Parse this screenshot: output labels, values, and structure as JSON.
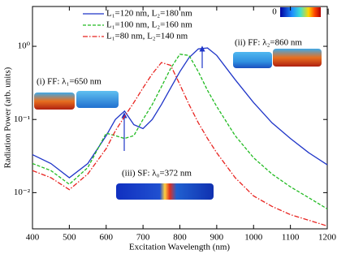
{
  "chart_data": {
    "type": "line",
    "xlabel": "Excitation Wavelength (nm)",
    "ylabel": "Radiation Power (arb. units)",
    "x": [
      400,
      450,
      500,
      550,
      600,
      625,
      650,
      675,
      700,
      725,
      750,
      775,
      800,
      825,
      850,
      875,
      900,
      950,
      1000,
      1050,
      1100,
      1150,
      1200
    ],
    "series": [
      {
        "name": "L₁=120 nm, L₂=180 nm",
        "color": "#1f35c8",
        "dash": "solid",
        "values": [
          0.033,
          0.025,
          0.016,
          0.025,
          0.06,
          0.1,
          0.13,
          0.085,
          0.075,
          0.1,
          0.16,
          0.27,
          0.45,
          0.7,
          0.92,
          0.95,
          0.75,
          0.35,
          0.17,
          0.09,
          0.055,
          0.035,
          0.024
        ]
      },
      {
        "name": "L₁=100 nm, L₂=160 nm",
        "color": "#22bb22",
        "dash": "dashed",
        "values": [
          0.025,
          0.02,
          0.013,
          0.022,
          0.065,
          0.06,
          0.055,
          0.06,
          0.1,
          0.16,
          0.28,
          0.5,
          0.78,
          0.75,
          0.45,
          0.25,
          0.15,
          0.06,
          0.03,
          0.018,
          0.012,
          0.0085,
          0.006
        ]
      },
      {
        "name": "L₁=80 nm, L₂=140 nm",
        "color": "#e8231f",
        "dash": "dashdot",
        "values": [
          0.02,
          0.016,
          0.011,
          0.018,
          0.04,
          0.07,
          0.11,
          0.17,
          0.27,
          0.42,
          0.6,
          0.55,
          0.3,
          0.16,
          0.09,
          0.055,
          0.035,
          0.016,
          0.009,
          0.0065,
          0.005,
          0.0042,
          0.0035
        ]
      }
    ],
    "xlim": [
      400,
      1200
    ],
    "xticks": [
      400,
      500,
      600,
      700,
      800,
      900,
      1000,
      1100,
      1200
    ],
    "ylim": [
      0.0032,
      3.5
    ],
    "yscale": "log",
    "yticks": [
      {
        "value": 0.01,
        "label": "10⁻²"
      },
      {
        "value": 0.1,
        "label": "10⁻¹"
      },
      {
        "value": 1,
        "label": "10⁰"
      }
    ],
    "annotations": [
      "(i) FF: λ₁=650 nm",
      "(ii) FF: λ₂=860 nm",
      "(iii) SF: λ₀=372 nm"
    ],
    "colorbar": {
      "ticks": [
        0,
        1
      ]
    }
  }
}
